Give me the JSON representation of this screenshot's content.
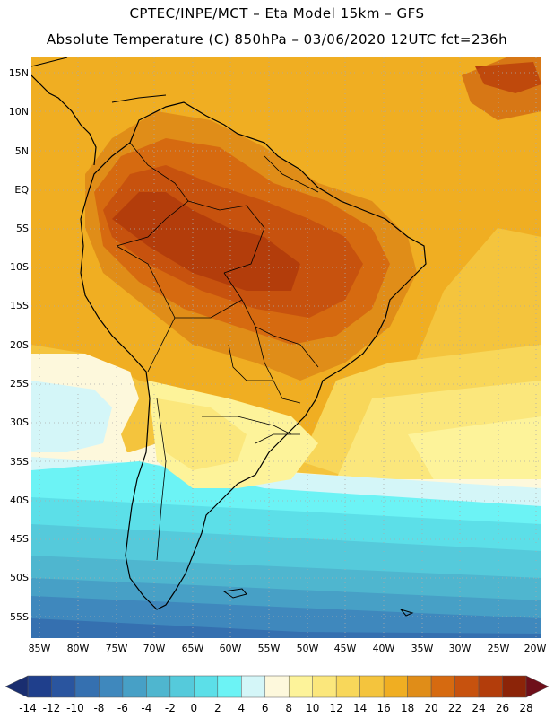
{
  "title_line1": "CPTEC/INPE/MCT –  Eta Model 15km – GFS",
  "title_line2": "Absolute Temperature (C) 850hPa – 03/06/2020 12UTC fct=236h",
  "lat_labels": [
    "15N",
    "10N",
    "5N",
    "EQ",
    "5S",
    "10S",
    "15S",
    "20S",
    "25S",
    "30S",
    "35S",
    "40S",
    "45S",
    "50S",
    "55S"
  ],
  "lon_labels": [
    "85W",
    "80W",
    "75W",
    "70W",
    "65W",
    "60W",
    "55W",
    "50W",
    "45W",
    "40W",
    "35W",
    "30W",
    "25W",
    "20W"
  ],
  "colorbar": {
    "labels": [
      "-14",
      "-12",
      "-10",
      "-8",
      "-6",
      "-4",
      "-2",
      "0",
      "2",
      "4",
      "6",
      "8",
      "10",
      "12",
      "14",
      "16",
      "18",
      "20",
      "22",
      "24",
      "26",
      "28"
    ],
    "colors": [
      "#1f3f8c",
      "#2a559f",
      "#3570b0",
      "#3f88bd",
      "#47a0c6",
      "#4fb6cf",
      "#55cadb",
      "#5cdfe8",
      "#6cf3f5",
      "#d4f6f8",
      "#fdf8dc",
      "#fdf39a",
      "#fbe77c",
      "#f8d75a",
      "#f4c43d",
      "#f0ae22",
      "#e08d18",
      "#d66a10",
      "#c7520e",
      "#b33d0b",
      "#8c2408"
    ],
    "low_end_color": "#1a2e70",
    "high_end_color": "#6e0f1a"
  }
}
